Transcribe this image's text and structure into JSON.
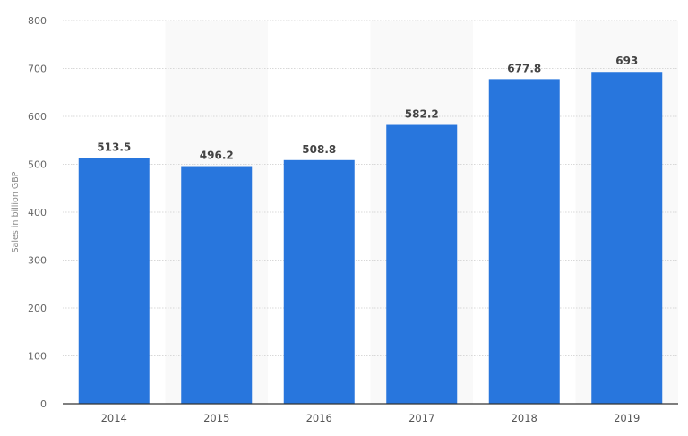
{
  "chart_data": {
    "type": "bar",
    "title": "",
    "xlabel": "",
    "ylabel": "Sales in billion GBP",
    "categories": [
      "2014",
      "2015",
      "2016",
      "2017",
      "2018",
      "2019"
    ],
    "values": [
      513.5,
      496.2,
      508.8,
      582.2,
      677.8,
      693
    ],
    "value_labels": [
      "513.5",
      "496.2",
      "508.8",
      "582.2",
      "677.8",
      "693"
    ],
    "ylim": [
      0,
      800
    ],
    "yticks": [
      0,
      100,
      200,
      300,
      400,
      500,
      600,
      700,
      800
    ],
    "grid": true,
    "legend": null,
    "colors": {
      "bar": "#2876dd",
      "band": "#f9f9f9",
      "grid": "#d8d8d8",
      "axis": "#333333"
    }
  }
}
